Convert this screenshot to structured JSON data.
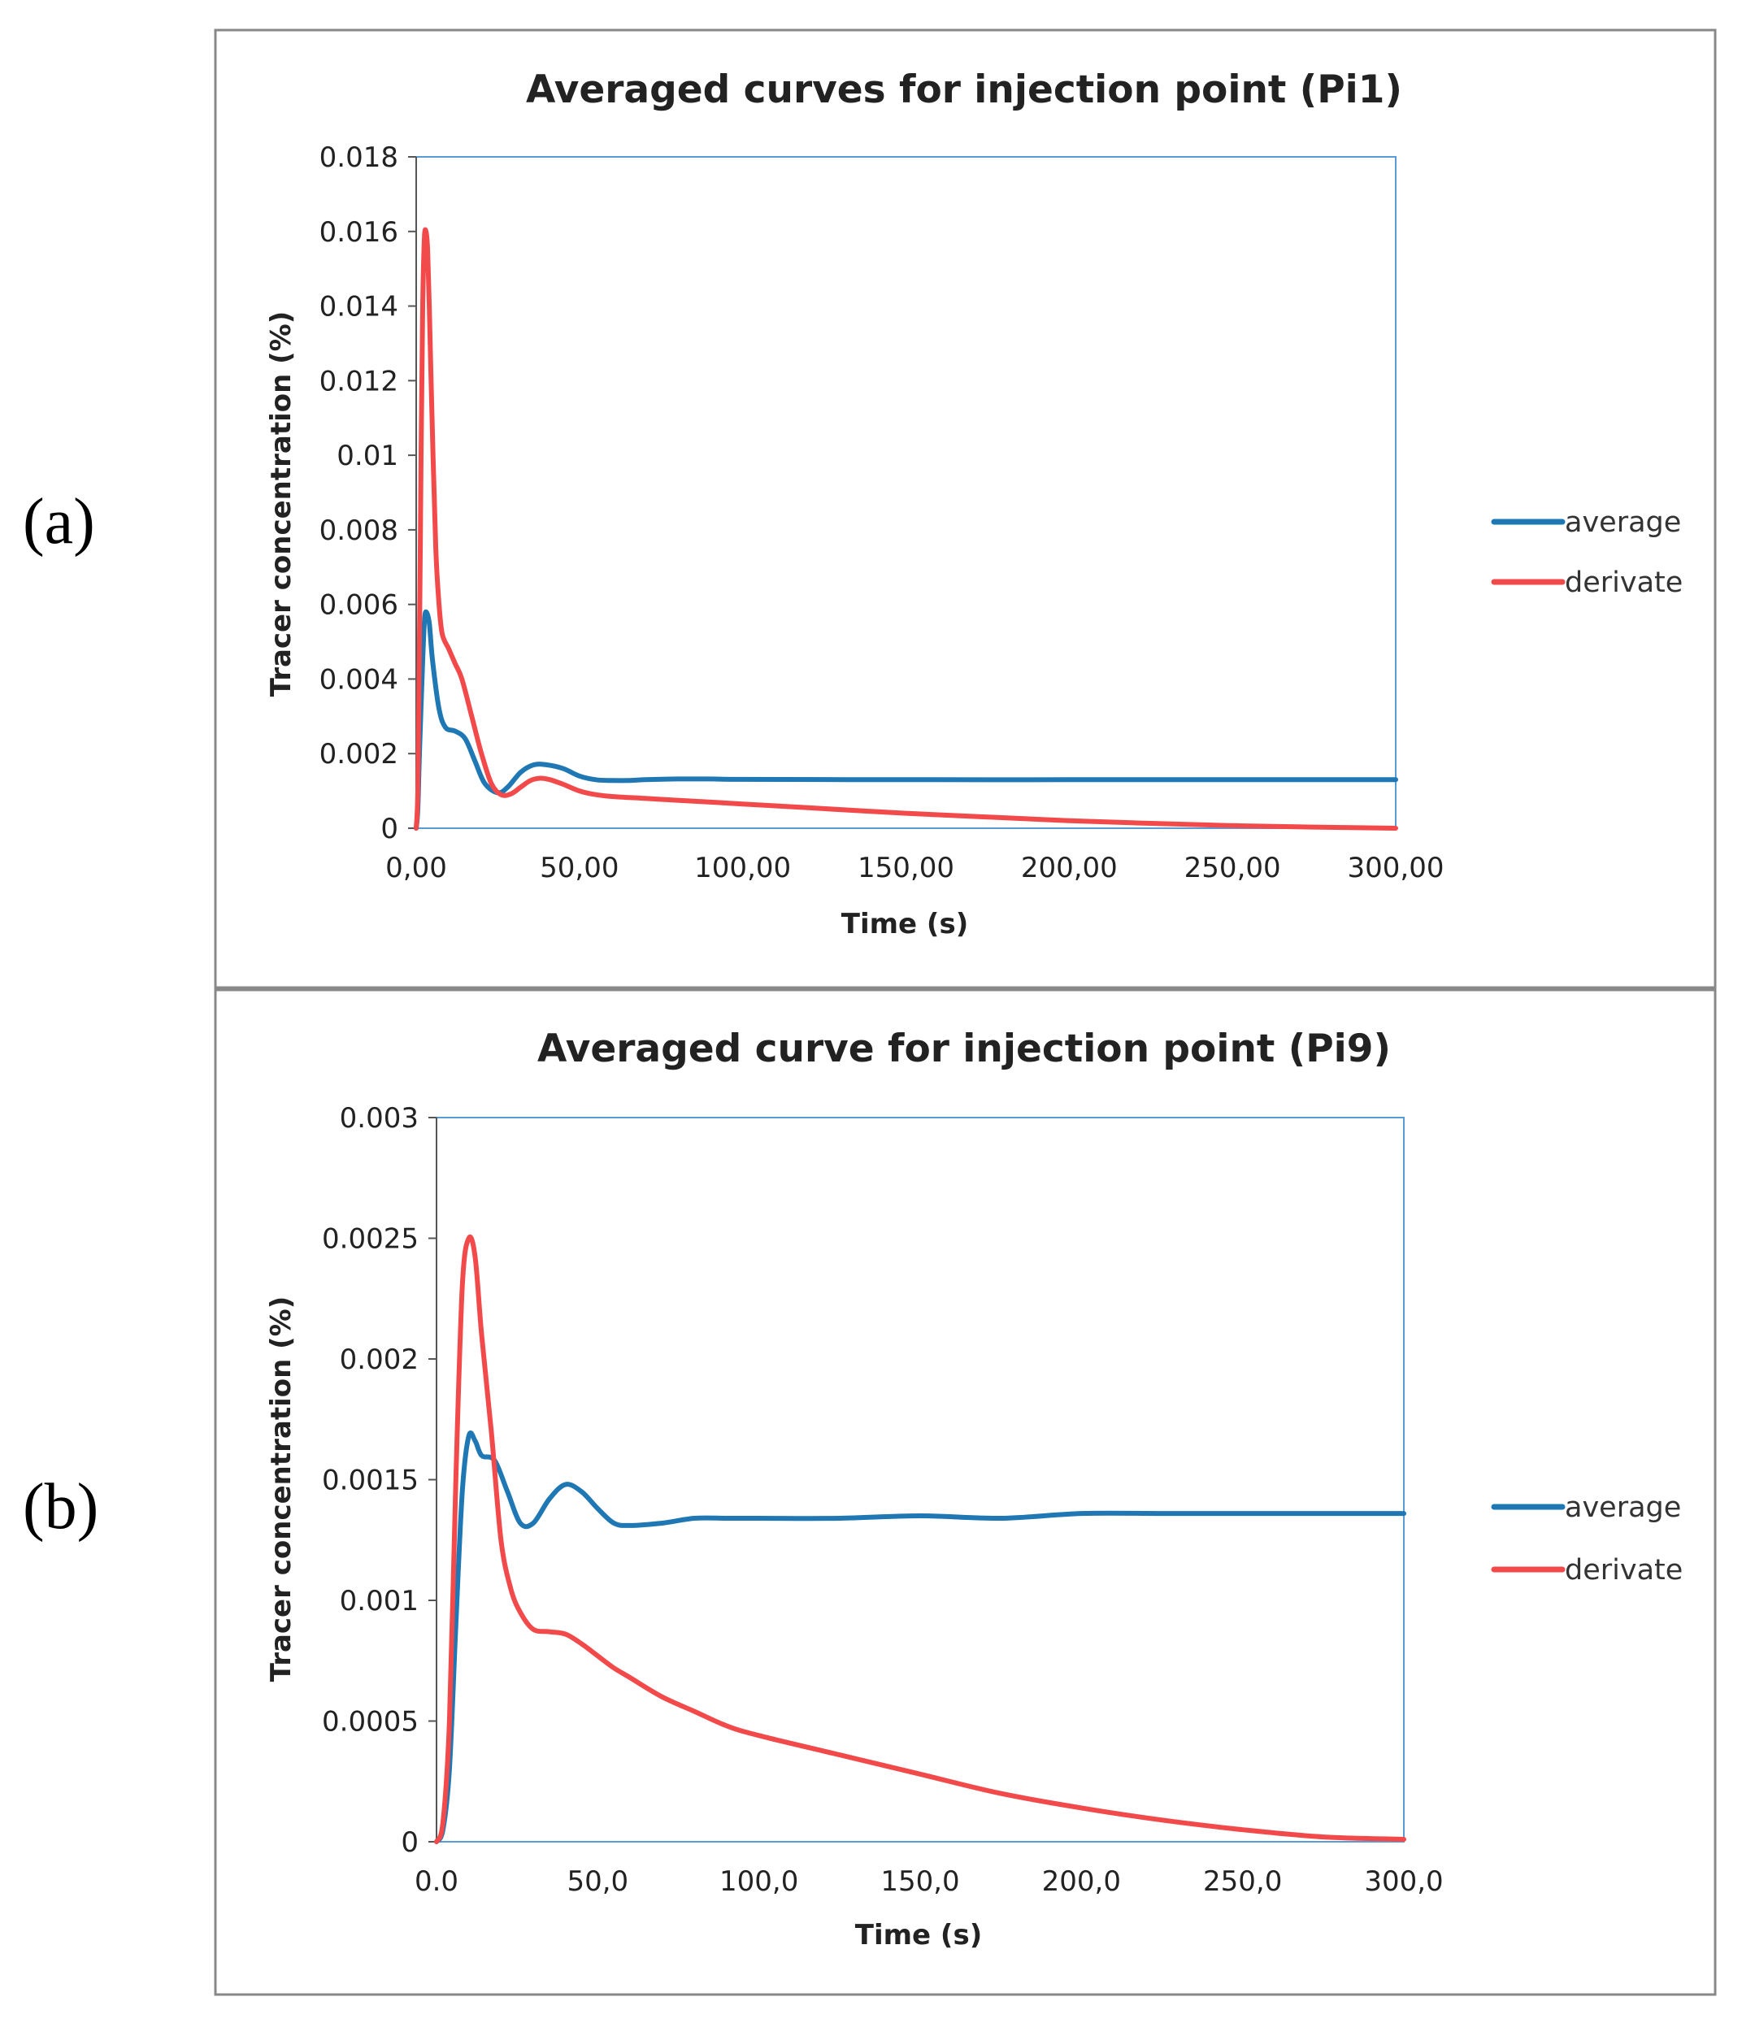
{
  "panels": [
    {
      "letter": "(a)"
    },
    {
      "letter": "(b)"
    }
  ],
  "colors": {
    "average": "#1f77b4",
    "derivate": "#f24a4a",
    "plot_border": "#5b9bd5",
    "frame": "#888888"
  },
  "chart_data": [
    {
      "type": "line",
      "title": "Averaged curves for injection point (Pi1)",
      "xlabel": "Time (s)",
      "ylabel": "Tracer concentration (%)",
      "xlim": [
        0,
        300
      ],
      "ylim": [
        0,
        0.018
      ],
      "x_ticks": [
        0,
        50,
        100,
        150,
        200,
        250,
        300
      ],
      "x_tick_labels": [
        "0,00",
        "50,00",
        "100,00",
        "150,00",
        "200,00",
        "250,00",
        "300,00"
      ],
      "y_ticks": [
        0,
        0.002,
        0.004,
        0.006,
        0.008,
        0.01,
        0.012,
        0.014,
        0.016,
        0.018
      ],
      "y_tick_labels": [
        "0",
        "0.002",
        "0.004",
        "0.006",
        "0.008",
        "0.01",
        "0.012",
        "0.014",
        "0.016",
        "0.018"
      ],
      "legend_position": "right",
      "series": [
        {
          "name": "average",
          "x": [
            0,
            0.5,
            1,
            2,
            2.5,
            3,
            4,
            5,
            7,
            9,
            12,
            15,
            18,
            21,
            25,
            28,
            32,
            36,
            40,
            45,
            50,
            55,
            60,
            65,
            70,
            80,
            90,
            100,
            150,
            200,
            250,
            300
          ],
          "y": [
            0,
            0.0005,
            0.002,
            0.0045,
            0.0055,
            0.0058,
            0.0055,
            0.0045,
            0.0032,
            0.0027,
            0.0026,
            0.0024,
            0.0018,
            0.0012,
            0.00095,
            0.0011,
            0.0015,
            0.0017,
            0.0017,
            0.0016,
            0.0014,
            0.0013,
            0.00128,
            0.00128,
            0.0013,
            0.00132,
            0.00132,
            0.00131,
            0.0013,
            0.0013,
            0.0013,
            0.0013
          ]
        },
        {
          "name": "derivate",
          "x": [
            0,
            0.5,
            1,
            1.5,
            2,
            2.5,
            3,
            3.5,
            4,
            5,
            6,
            7,
            8,
            10,
            12,
            14,
            17,
            20,
            23,
            26,
            29,
            32,
            35,
            38,
            41,
            45,
            50,
            55,
            60,
            70,
            80,
            100,
            120,
            150,
            175,
            200,
            225,
            250,
            275,
            300
          ],
          "y": [
            0,
            0.001,
            0.005,
            0.01,
            0.014,
            0.0158,
            0.016,
            0.0155,
            0.014,
            0.0105,
            0.0075,
            0.006,
            0.0052,
            0.0048,
            0.0044,
            0.004,
            0.003,
            0.002,
            0.0012,
            0.0009,
            0.00092,
            0.0011,
            0.00128,
            0.00134,
            0.0013,
            0.00118,
            0.001,
            0.0009,
            0.00085,
            0.0008,
            0.00075,
            0.00065,
            0.00055,
            0.0004,
            0.0003,
            0.0002,
            0.00013,
            7e-05,
            3e-05,
            0
          ]
        }
      ]
    },
    {
      "type": "line",
      "title": "Averaged curve for injection point (Pi9)",
      "xlabel": "Time (s)",
      "ylabel": "Tracer concentration (%)",
      "xlim": [
        0,
        300
      ],
      "ylim": [
        0,
        0.003
      ],
      "x_ticks": [
        0,
        50,
        100,
        150,
        200,
        250,
        300
      ],
      "x_tick_labels": [
        "0.0",
        "50,0",
        "100,0",
        "150,0",
        "200,0",
        "250,0",
        "300,0"
      ],
      "y_ticks": [
        0,
        0.0005,
        0.001,
        0.0015,
        0.002,
        0.0025,
        0.003
      ],
      "y_tick_labels": [
        "0",
        "0.0005",
        "0.001",
        "0.0015",
        "0.002",
        "0.0025",
        "0.003"
      ],
      "legend_position": "right",
      "series": [
        {
          "name": "average",
          "x": [
            0,
            2,
            4,
            6,
            8,
            10,
            12,
            14,
            18,
            22,
            26,
            30,
            35,
            40,
            45,
            50,
            55,
            60,
            70,
            80,
            90,
            100,
            125,
            150,
            175,
            200,
            225,
            250,
            275,
            300
          ],
          "y": [
            0,
            5e-05,
            0.0003,
            0.0009,
            0.00145,
            0.00168,
            0.00166,
            0.0016,
            0.00158,
            0.00145,
            0.00132,
            0.00132,
            0.00142,
            0.00148,
            0.00145,
            0.00138,
            0.00132,
            0.00131,
            0.00132,
            0.00134,
            0.00134,
            0.00134,
            0.00134,
            0.00135,
            0.00134,
            0.00136,
            0.00136,
            0.00136,
            0.00136,
            0.00136
          ]
        },
        {
          "name": "derivate",
          "x": [
            0,
            2,
            4,
            6,
            8,
            10,
            12,
            14,
            17,
            20,
            23,
            26,
            30,
            35,
            40,
            45,
            50,
            55,
            60,
            70,
            80,
            90,
            100,
            125,
            150,
            175,
            200,
            225,
            250,
            275,
            300
          ],
          "y": [
            0,
            8e-05,
            0.0005,
            0.0015,
            0.0023,
            0.0025,
            0.00242,
            0.0021,
            0.0017,
            0.00125,
            0.00105,
            0.00095,
            0.00088,
            0.00087,
            0.00086,
            0.00082,
            0.00077,
            0.00072,
            0.00068,
            0.0006,
            0.00054,
            0.00048,
            0.00044,
            0.00036,
            0.00028,
            0.0002,
            0.00014,
            9e-05,
            5e-05,
            2e-05,
            1e-05
          ]
        }
      ]
    }
  ]
}
